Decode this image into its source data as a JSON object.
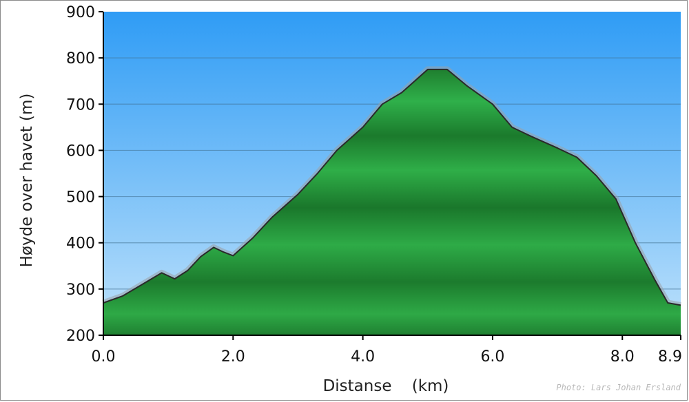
{
  "chart_data": {
    "type": "area",
    "xlabel": "Distanse    (km)",
    "ylabel": "Høyde over havet (m)",
    "xlim": [
      0,
      8.9
    ],
    "ylim": [
      200,
      900
    ],
    "x_ticks": [
      "0.0",
      "2.0",
      "4.0",
      "6.0",
      "8.0",
      "8.9"
    ],
    "y_ticks": [
      "200",
      "300",
      "400",
      "500",
      "600",
      "700",
      "800",
      "900"
    ],
    "grid": true,
    "series": [
      {
        "values": [
          [
            0.0,
            270
          ],
          [
            0.3,
            285
          ],
          [
            0.6,
            310
          ],
          [
            0.9,
            335
          ],
          [
            1.1,
            322
          ],
          [
            1.3,
            340
          ],
          [
            1.5,
            370
          ],
          [
            1.7,
            390
          ],
          [
            1.85,
            380
          ],
          [
            2.0,
            372
          ],
          [
            2.3,
            410
          ],
          [
            2.6,
            455
          ],
          [
            3.0,
            505
          ],
          [
            3.3,
            550
          ],
          [
            3.6,
            600
          ],
          [
            4.0,
            650
          ],
          [
            4.3,
            700
          ],
          [
            4.6,
            725
          ],
          [
            5.0,
            775
          ],
          [
            5.3,
            775
          ],
          [
            5.6,
            740
          ],
          [
            6.0,
            700
          ],
          [
            6.3,
            650
          ],
          [
            6.6,
            630
          ],
          [
            7.0,
            605
          ],
          [
            7.3,
            585
          ],
          [
            7.6,
            545
          ],
          [
            7.9,
            495
          ],
          [
            8.2,
            400
          ],
          [
            8.5,
            320
          ],
          [
            8.7,
            270
          ],
          [
            8.9,
            265
          ]
        ]
      }
    ],
    "colors": {
      "sky_top": "#2f9cf5",
      "sky_bottom": "#bfe2fb",
      "terrain": "#22963a",
      "outline": "#2a2a2a"
    }
  },
  "credit": "Photo: Lars Johan Ersland"
}
